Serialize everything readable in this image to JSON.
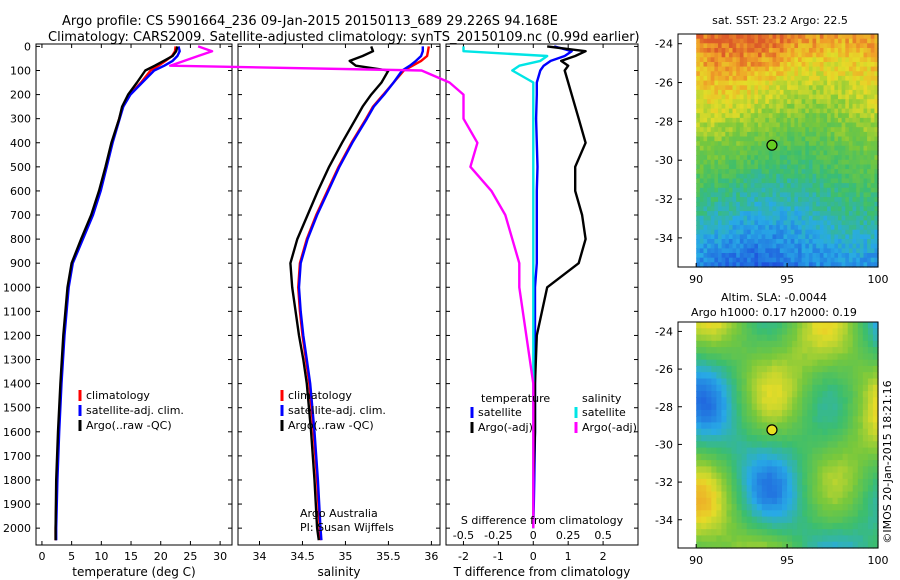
{
  "header": {
    "line1": "Argo profile: CS 5901664_236 09-Jan-2015 20150113_689 29.226S 94.168E",
    "line2": "Climatology: CARS2009. Satellite-adjusted climatology: synTS_20150109.nc (0.99d earlier)"
  },
  "colors": {
    "climatology": "#ff0000",
    "satellite": "#0000ff",
    "argo": "#000000",
    "sal_satellite": "#00e5e5",
    "sal_argo": "#ff00ff"
  },
  "attribution": {
    "line1": "Argo Australia",
    "line2": "PI: Susan Wijffels",
    "imos": "©IMOS 20-Jan-2015 18:21:16"
  },
  "chart_data": [
    {
      "type": "line",
      "panel": "temperature",
      "xlabel": "temperature (deg C)",
      "xlim": [
        -1,
        32
      ],
      "xticks": [
        "0",
        "5",
        "10",
        "15",
        "20",
        "25",
        "30"
      ],
      "ylim": [
        2070,
        -10
      ],
      "yticks": [
        "0",
        "100",
        "200",
        "300",
        "400",
        "500",
        "600",
        "700",
        "800",
        "900",
        "1000",
        "1100",
        "1200",
        "1300",
        "1400",
        "1500",
        "1600",
        "1700",
        "1800",
        "1900",
        "2000"
      ],
      "legend": [
        "climatology",
        "satellite-adj. clim.",
        "Argo(..raw -QC)"
      ],
      "depth": [
        0,
        20,
        40,
        60,
        80,
        100,
        150,
        200,
        250,
        300,
        400,
        500,
        600,
        700,
        800,
        900,
        1000,
        1200,
        1400,
        1600,
        1800,
        2000,
        2050
      ],
      "series": [
        {
          "name": "climatology",
          "values": [
            22.5,
            22.4,
            21.9,
            20.8,
            19.6,
            18.3,
            16.7,
            14.8,
            13.6,
            13.0,
            11.8,
            10.8,
            9.8,
            8.5,
            6.8,
            5.1,
            4.4,
            3.7,
            3.2,
            2.8,
            2.5,
            2.3,
            2.3
          ]
        },
        {
          "name": "satellite-adj. clim.",
          "values": [
            23.0,
            23.2,
            22.8,
            22.0,
            20.6,
            18.9,
            16.9,
            14.9,
            13.7,
            13.1,
            11.9,
            10.9,
            9.9,
            8.6,
            6.9,
            5.2,
            4.5,
            3.8,
            3.3,
            2.9,
            2.6,
            2.4,
            2.4
          ]
        },
        {
          "name": "Argo(..raw -QC)",
          "values": [
            22.8,
            22.6,
            22.0,
            20.5,
            19.0,
            17.4,
            16.0,
            14.5,
            13.5,
            13.0,
            11.7,
            10.7,
            9.6,
            8.3,
            6.6,
            5.0,
            4.3,
            3.6,
            3.1,
            2.7,
            2.4,
            2.3,
            2.3
          ]
        }
      ]
    },
    {
      "type": "line",
      "panel": "salinity",
      "xlabel": "salinity",
      "xlim": [
        33.75,
        36.1
      ],
      "xticks": [
        "34",
        "34.5",
        "35",
        "35.5",
        "36"
      ],
      "ylim": [
        2070,
        -10
      ],
      "legend": [
        "climatology",
        "satellite-adj. clim.",
        "Argo(..raw -QC)"
      ],
      "depth": [
        0,
        20,
        40,
        60,
        80,
        100,
        150,
        200,
        250,
        300,
        400,
        500,
        600,
        700,
        800,
        900,
        1000,
        1100,
        1200,
        1300,
        1400,
        1600,
        1800,
        2000,
        2050
      ],
      "series": [
        {
          "name": "climatology",
          "values": [
            35.97,
            35.96,
            35.95,
            35.88,
            35.78,
            35.68,
            35.56,
            35.44,
            35.32,
            35.24,
            35.07,
            34.92,
            34.79,
            34.66,
            34.55,
            34.47,
            34.45,
            34.47,
            34.5,
            34.54,
            34.58,
            34.63,
            34.67,
            34.7,
            34.71
          ]
        },
        {
          "name": "satellite-adj. clim.",
          "values": [
            35.9,
            35.9,
            35.88,
            35.82,
            35.75,
            35.66,
            35.56,
            35.45,
            35.33,
            35.25,
            35.08,
            34.93,
            34.8,
            34.67,
            34.56,
            34.48,
            34.46,
            34.48,
            34.51,
            34.55,
            34.59,
            34.64,
            34.68,
            34.71,
            34.72
          ]
        },
        {
          "name": "Argo(..raw -QC)",
          "values": [
            35.3,
            35.32,
            35.2,
            35.05,
            35.12,
            35.5,
            35.42,
            35.3,
            35.2,
            35.12,
            34.96,
            34.81,
            34.68,
            34.56,
            34.44,
            34.36,
            34.38,
            34.42,
            34.46,
            34.51,
            34.55,
            34.6,
            34.64,
            34.67,
            34.69
          ]
        }
      ]
    },
    {
      "type": "line",
      "panel": "difference",
      "xlabel": "T difference from climatology",
      "xlabel2": "S difference from climatology",
      "xlim": [
        -2.5,
        3.0
      ],
      "xticks": [
        "-2",
        "-1",
        "0",
        "1",
        "2"
      ],
      "xticks_S": [
        "-0.5",
        "-0.25",
        "0",
        "0.25",
        "0.5"
      ],
      "ylim": [
        2070,
        -10
      ],
      "legend_headers": [
        "temperature",
        "salinity"
      ],
      "legend": [
        "satellite",
        "Argo(-adj)",
        "satellite",
        "Argo(-adj)"
      ],
      "depth": [
        0,
        20,
        40,
        60,
        80,
        100,
        150,
        200,
        300,
        400,
        500,
        600,
        700,
        800,
        900,
        1000,
        1200,
        1400,
        1600,
        1800,
        2000
      ],
      "series": [
        {
          "name": "satellite",
          "group": "temperature",
          "values": [
            0.6,
            1.1,
            0.9,
            0.5,
            0.3,
            0.2,
            0.1,
            0.1,
            0.08,
            0.1,
            0.12,
            0.1,
            0.1,
            0.1,
            0.1,
            0.05,
            0.05,
            0.05,
            0.05,
            0.03,
            0.0
          ]
        },
        {
          "name": "Argo(-adj)",
          "group": "temperature",
          "values": [
            0.4,
            1.5,
            1.2,
            0.8,
            1.0,
            0.9,
            1.0,
            1.1,
            1.3,
            1.5,
            1.2,
            1.2,
            1.4,
            1.5,
            1.3,
            0.4,
            0.1,
            0.05,
            0.05,
            0.0,
            0.0
          ]
        },
        {
          "name": "satellite",
          "group": "salinity",
          "values": [
            -0.5,
            -0.5,
            0.1,
            0.05,
            -0.1,
            -0.15,
            0.0,
            0.0,
            0.0,
            0.0,
            0.0,
            0.0,
            0.0,
            0.0,
            0.0,
            0.0,
            0.0,
            0.0,
            0.0,
            0.0,
            0.0
          ]
        },
        {
          "name": "Argo(-adj)",
          "group": "salinity",
          "values": [
            -2.4,
            -2.3,
            -2.4,
            -2.5,
            -2.6,
            -0.8,
            -0.6,
            -0.5,
            -0.5,
            -0.4,
            -0.45,
            -0.3,
            -0.2,
            -0.15,
            -0.1,
            -0.1,
            -0.05,
            0.0,
            0.0,
            0.0,
            0.0
          ]
        }
      ]
    },
    {
      "type": "heatmap",
      "panel": "sst-map",
      "title": "sat. SST: 23.2  Argo: 22.5",
      "xlim": [
        89,
        100
      ],
      "ylim": [
        -35.5,
        -23.5
      ],
      "xticks": [
        "90",
        "95",
        "100"
      ],
      "yticks": [
        "-24",
        "-26",
        "-28",
        "-30",
        "-32",
        "-34"
      ],
      "marker": {
        "lon": 94.168,
        "lat": -29.226
      }
    },
    {
      "type": "heatmap",
      "panel": "sla-map",
      "title": "Altim. SLA: -0.0044",
      "subtitle": "Argo h1000: 0.17 h2000: 0.19",
      "xlim": [
        89,
        100
      ],
      "ylim": [
        -35.5,
        -23.5
      ],
      "xticks": [
        "90",
        "95",
        "100"
      ],
      "yticks": [
        "-24",
        "-26",
        "-28",
        "-30",
        "-32",
        "-34"
      ],
      "marker": {
        "lon": 94.168,
        "lat": -29.226
      }
    }
  ]
}
